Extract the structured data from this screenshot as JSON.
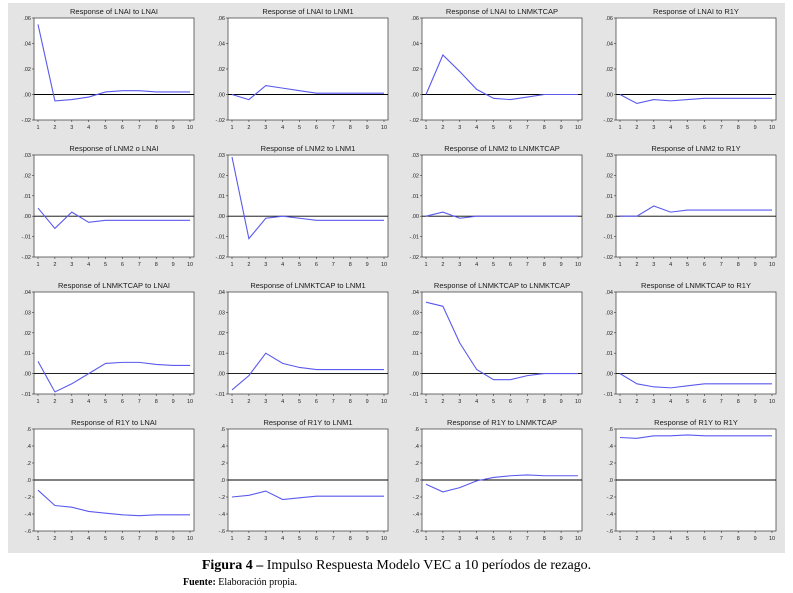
{
  "caption": {
    "label": "Figura 4",
    "dash": " – ",
    "text": "Impulso Respuesta Modelo VEC a 10 períodos de rezago.",
    "source_label": "Fuente:",
    "source_text": " Elaboración propia."
  },
  "colors": {
    "line": "#5a5aee",
    "zero": "#000000",
    "plot_bg": "#ffffff",
    "panel_bg": "#e4e4e4"
  },
  "chart_data": [
    {
      "type": "line",
      "title": "Response of LNAI to LNAI",
      "x": [
        1,
        2,
        3,
        4,
        5,
        6,
        7,
        8,
        9,
        10
      ],
      "values": [
        0.055,
        -0.005,
        -0.004,
        -0.002,
        0.002,
        0.003,
        0.003,
        0.002,
        0.002,
        0.002
      ],
      "ylim": [
        -0.02,
        0.06
      ],
      "yticks": [
        ".06",
        ".04",
        ".02",
        ".00",
        "-.02"
      ]
    },
    {
      "type": "line",
      "title": "Response of LNAI to LNM1",
      "x": [
        1,
        2,
        3,
        4,
        5,
        6,
        7,
        8,
        9,
        10
      ],
      "values": [
        0.0,
        -0.004,
        0.007,
        0.005,
        0.003,
        0.001,
        0.001,
        0.001,
        0.001,
        0.001
      ],
      "ylim": [
        -0.02,
        0.06
      ],
      "yticks": [
        ".06",
        ".04",
        ".02",
        ".00",
        "-.02"
      ]
    },
    {
      "type": "line",
      "title": "Response of LNAI to LNMKTCAP",
      "x": [
        1,
        2,
        3,
        4,
        5,
        6,
        7,
        8,
        9,
        10
      ],
      "values": [
        0.0,
        0.031,
        0.018,
        0.004,
        -0.003,
        -0.004,
        -0.002,
        0.0,
        0.0,
        0.0
      ],
      "ylim": [
        -0.02,
        0.06
      ],
      "yticks": [
        ".06",
        ".04",
        ".02",
        ".00",
        "-.02"
      ]
    },
    {
      "type": "line",
      "title": "Response of LNAI to R1Y",
      "x": [
        1,
        2,
        3,
        4,
        5,
        6,
        7,
        8,
        9,
        10
      ],
      "values": [
        0.0,
        -0.007,
        -0.004,
        -0.005,
        -0.004,
        -0.003,
        -0.003,
        -0.003,
        -0.003,
        -0.003
      ],
      "ylim": [
        -0.02,
        0.06
      ],
      "yticks": [
        ".06",
        ".04",
        ".02",
        ".00",
        "-.02"
      ]
    },
    {
      "type": "line",
      "title": "Response of LNM2  o LNAI",
      "x": [
        1,
        2,
        3,
        4,
        5,
        6,
        7,
        8,
        9,
        10
      ],
      "values": [
        0.004,
        -0.006,
        0.002,
        -0.003,
        -0.002,
        -0.002,
        -0.002,
        -0.002,
        -0.002,
        -0.002
      ],
      "ylim": [
        -0.02,
        0.03
      ],
      "yticks": [
        ".03",
        ".02",
        ".01",
        ".00",
        "-.01",
        "-.02"
      ]
    },
    {
      "type": "line",
      "title": "Response of LNM2 to LNM1",
      "x": [
        1,
        2,
        3,
        4,
        5,
        6,
        7,
        8,
        9,
        10
      ],
      "values": [
        0.029,
        -0.011,
        -0.001,
        0.0,
        -0.001,
        -0.002,
        -0.002,
        -0.002,
        -0.002,
        -0.002
      ],
      "ylim": [
        -0.02,
        0.03
      ],
      "yticks": [
        ".03",
        ".02",
        ".01",
        ".00",
        "-.01",
        "-.02"
      ]
    },
    {
      "type": "line",
      "title": "Response of LNM2 to LNMKTCAP",
      "x": [
        1,
        2,
        3,
        4,
        5,
        6,
        7,
        8,
        9,
        10
      ],
      "values": [
        0.0,
        0.002,
        -0.001,
        0.0,
        0.0,
        0.0,
        0.0,
        0.0,
        0.0,
        0.0
      ],
      "ylim": [
        -0.02,
        0.03
      ],
      "yticks": [
        ".03",
        ".02",
        ".01",
        ".00",
        "-.01",
        "-.02"
      ]
    },
    {
      "type": "line",
      "title": "Response of LNM2 to R1Y",
      "x": [
        1,
        2,
        3,
        4,
        5,
        6,
        7,
        8,
        9,
        10
      ],
      "values": [
        0.0,
        0.0,
        0.005,
        0.002,
        0.003,
        0.003,
        0.003,
        0.003,
        0.003,
        0.003
      ],
      "ylim": [
        -0.02,
        0.03
      ],
      "yticks": [
        ".03",
        ".02",
        ".01",
        ".00",
        "-.01",
        "-.02"
      ]
    },
    {
      "type": "line",
      "title": "Response of LNMKTCAP to LNAI",
      "x": [
        1,
        2,
        3,
        4,
        5,
        6,
        7,
        8,
        9,
        10
      ],
      "values": [
        0.006,
        -0.009,
        -0.005,
        0.0,
        0.005,
        0.0055,
        0.0055,
        0.0045,
        0.004,
        0.004
      ],
      "ylim": [
        -0.01,
        0.04
      ],
      "yticks": [
        ".04",
        ".03",
        ".02",
        ".01",
        ".00",
        "-.01"
      ]
    },
    {
      "type": "line",
      "title": "Response of LNMKTCAP to LNM1",
      "x": [
        1,
        2,
        3,
        4,
        5,
        6,
        7,
        8,
        9,
        10
      ],
      "values": [
        -0.008,
        -0.001,
        0.01,
        0.005,
        0.003,
        0.002,
        0.002,
        0.002,
        0.002,
        0.002
      ],
      "ylim": [
        -0.01,
        0.04
      ],
      "yticks": [
        ".04",
        ".03",
        ".02",
        ".01",
        ".00",
        "-.01"
      ]
    },
    {
      "type": "line",
      "title": "Response of LNMKTCAP to LNMKTCAP",
      "x": [
        1,
        2,
        3,
        4,
        5,
        6,
        7,
        8,
        9,
        10
      ],
      "values": [
        0.035,
        0.033,
        0.015,
        0.002,
        -0.003,
        -0.003,
        -0.001,
        0.0,
        0.0,
        0.0
      ],
      "ylim": [
        -0.01,
        0.04
      ],
      "yticks": [
        ".04",
        ".03",
        ".02",
        ".01",
        ".00",
        "-.01"
      ]
    },
    {
      "type": "line",
      "title": "Response of LNMKTCAP to R1Y",
      "x": [
        1,
        2,
        3,
        4,
        5,
        6,
        7,
        8,
        9,
        10
      ],
      "values": [
        0.0,
        -0.005,
        -0.0065,
        -0.007,
        -0.006,
        -0.005,
        -0.005,
        -0.005,
        -0.005,
        -0.005
      ],
      "ylim": [
        -0.01,
        0.04
      ],
      "yticks": [
        ".04",
        ".03",
        ".02",
        ".01",
        ".00",
        "-.01"
      ]
    },
    {
      "type": "line",
      "title": "Response of R1Y to LNAI",
      "x": [
        1,
        2,
        3,
        4,
        5,
        6,
        7,
        8,
        9,
        10
      ],
      "values": [
        -0.12,
        -0.3,
        -0.32,
        -0.37,
        -0.39,
        -0.41,
        -0.42,
        -0.41,
        -0.41,
        -0.41
      ],
      "ylim": [
        -0.6,
        0.6
      ],
      "yticks": [
        ".6",
        ".4",
        ".2",
        ".0",
        "-.2",
        "-.4",
        "-.6"
      ]
    },
    {
      "type": "line",
      "title": "Response of R1Y to LNM1",
      "x": [
        1,
        2,
        3,
        4,
        5,
        6,
        7,
        8,
        9,
        10
      ],
      "values": [
        -0.2,
        -0.18,
        -0.13,
        -0.23,
        -0.21,
        -0.19,
        -0.19,
        -0.19,
        -0.19,
        -0.19
      ],
      "ylim": [
        -0.6,
        0.6
      ],
      "yticks": [
        ".6",
        ".4",
        ".2",
        ".0",
        "-.2",
        "-.4",
        "-.6"
      ]
    },
    {
      "type": "line",
      "title": "Response of R1Y to LNMKTCAP",
      "x": [
        1,
        2,
        3,
        4,
        5,
        6,
        7,
        8,
        9,
        10
      ],
      "values": [
        -0.05,
        -0.14,
        -0.09,
        -0.01,
        0.03,
        0.05,
        0.06,
        0.05,
        0.05,
        0.05
      ],
      "ylim": [
        -0.6,
        0.6
      ],
      "yticks": [
        ".6",
        ".4",
        ".2",
        ".0",
        "-.2",
        "-.4",
        "-.6"
      ]
    },
    {
      "type": "line",
      "title": "Response of R1Y to R1Y",
      "x": [
        1,
        2,
        3,
        4,
        5,
        6,
        7,
        8,
        9,
        10
      ],
      "values": [
        0.5,
        0.49,
        0.52,
        0.52,
        0.53,
        0.52,
        0.52,
        0.52,
        0.52,
        0.52
      ],
      "ylim": [
        -0.6,
        0.6
      ],
      "yticks": [
        ".6",
        ".4",
        ".2",
        ".0",
        "-.2",
        "-.4",
        "-.6"
      ]
    }
  ]
}
